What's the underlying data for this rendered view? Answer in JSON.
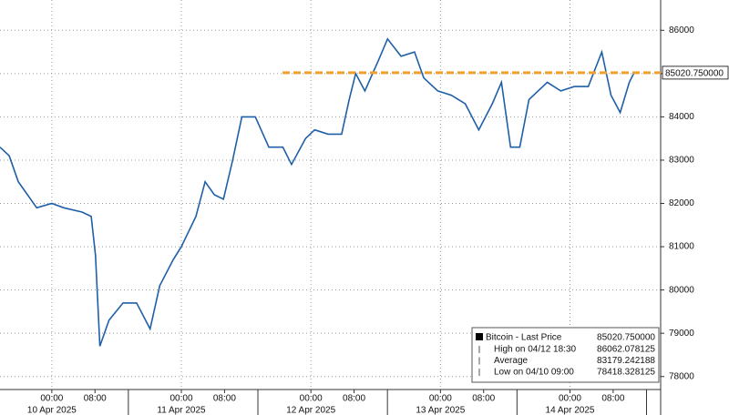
{
  "chart_data": {
    "type": "line",
    "x": [
      -9.6,
      -7.9,
      -6.2,
      -2.8,
      0,
      2.2,
      5.6,
      7.3,
      8.1,
      8.9,
      10.6,
      13.2,
      15.7,
      18.2,
      20,
      22.5,
      24,
      26.7,
      28.4,
      30.1,
      31.8,
      33.5,
      35.2,
      37.7,
      40.2,
      42.8,
      44.4,
      47,
      48.7,
      51.2,
      53.7,
      55.1,
      56.3,
      58,
      60.5,
      62.2,
      64.7,
      67.2,
      68.9,
      71.5,
      74,
      76.6,
      79.1,
      81.6,
      83.3,
      85,
      86.7,
      88.4,
      90.1,
      91.8,
      94.3,
      96.8,
      99.4,
      101.9,
      103.6,
      105.3,
      107,
      107.8
    ],
    "series": [
      {
        "name": "Bitcoin - Last Price",
        "color": "#1f5fa8",
        "values": [
          83300,
          83100,
          82500,
          81900,
          82000,
          81900,
          81800,
          81700,
          80800,
          78700,
          79300,
          79700,
          79700,
          79100,
          80100,
          80700,
          81000,
          81700,
          82500,
          82200,
          82100,
          83000,
          84000,
          84000,
          83300,
          83300,
          82900,
          83500,
          83700,
          83600,
          83600,
          84400,
          85000,
          84600,
          85300,
          85800,
          85400,
          85500,
          84900,
          84600,
          84500,
          84300,
          83700,
          84300,
          84800,
          83300,
          83300,
          84400,
          84600,
          84800,
          84600,
          84700,
          84700,
          85500,
          84500,
          84100,
          84800,
          85000
        ]
      }
    ],
    "xlim": [
      -9.6,
      112.8
    ],
    "xticks": [
      {
        "value": 0,
        "label": "00:00"
      },
      {
        "value": 8,
        "label": "08:00"
      },
      {
        "value": 24,
        "label": "00:00"
      },
      {
        "value": 32,
        "label": "08:00"
      },
      {
        "value": 48,
        "label": "00:00"
      },
      {
        "value": 56,
        "label": "08:00"
      },
      {
        "value": 72,
        "label": "00:00"
      },
      {
        "value": 80,
        "label": "08:00"
      },
      {
        "value": 96,
        "label": "00:00"
      },
      {
        "value": 104,
        "label": "08:00"
      }
    ],
    "date_labels": [
      {
        "value": 0,
        "label": "10 Apr 2025"
      },
      {
        "value": 24,
        "label": "11 Apr 2025"
      },
      {
        "value": 48,
        "label": "12 Apr 2025"
      },
      {
        "value": 72,
        "label": "13 Apr 2025"
      },
      {
        "value": 96,
        "label": "14 Apr 2025"
      }
    ],
    "ylim": [
      77700,
      86700
    ],
    "yticks": [
      78000,
      79000,
      80000,
      81000,
      82000,
      83000,
      84000,
      85000,
      86000
    ],
    "grid": true,
    "last_price": 85020.75,
    "last_price_label": "85020.750000",
    "last_price_color": "#f0a030",
    "legend_rows": [
      {
        "label": "High on 04/12 18:30",
        "value": "86062.078125"
      },
      {
        "label": "Average",
        "value": "83179.242188"
      },
      {
        "label": "Low on 04/10 09:00",
        "value": "78418.328125"
      }
    ]
  }
}
